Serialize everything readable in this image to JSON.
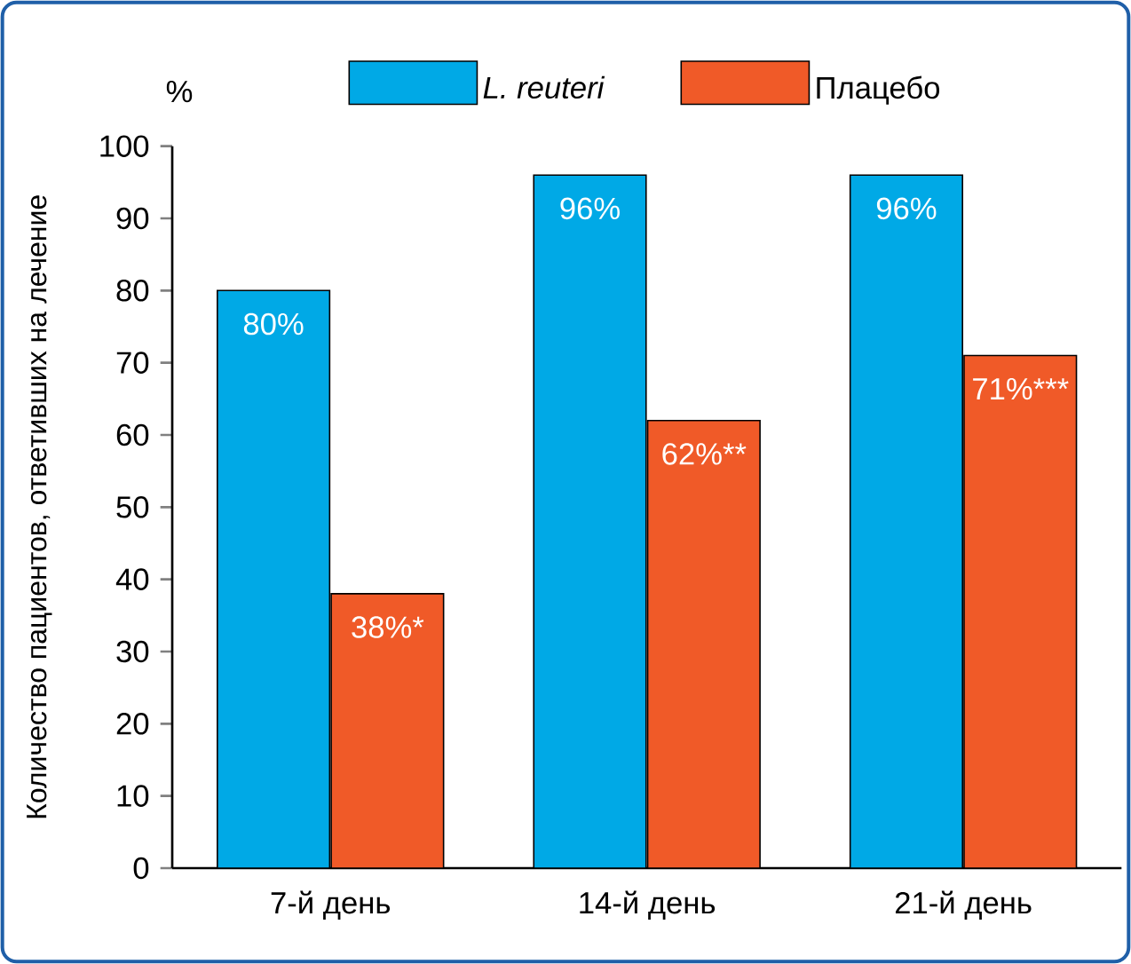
{
  "chart_data": {
    "type": "bar",
    "ylabel": "Количество пациентов, ответивших на лечение",
    "annotations": [
      "%"
    ],
    "categories": [
      "7-й день",
      "14-й день",
      "21-й день"
    ],
    "series": [
      {
        "name": "*L. reuteri*",
        "color": "#00a9e6",
        "values": [
          80,
          96,
          96
        ],
        "value_labels": [
          "80%",
          "96%",
          "96%"
        ]
      },
      {
        "name": "Плацебо",
        "color": "#f05a28",
        "values": [
          38,
          62,
          71
        ],
        "value_labels": [
          "38%*",
          "62%**",
          "71%***"
        ]
      }
    ],
    "ylim": [
      0,
      100
    ],
    "yticks": [
      0,
      10,
      20,
      30,
      40,
      50,
      60,
      70,
      80,
      90,
      100
    ],
    "grid": false,
    "legend": "top"
  }
}
